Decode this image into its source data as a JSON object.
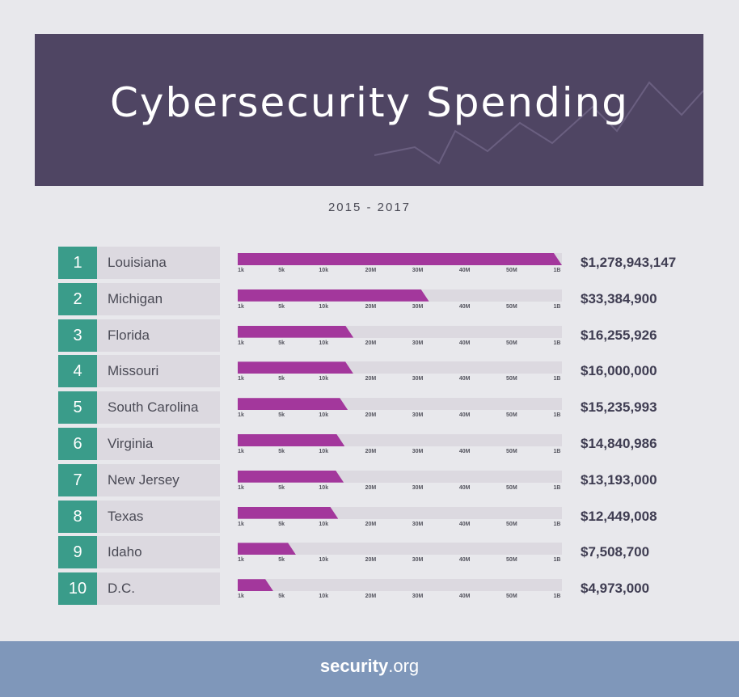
{
  "header": {
    "title": "Cybersecurity Spending",
    "subtitle": "2015 - 2017"
  },
  "colors": {
    "banner": "#4f4563",
    "rank": "#3a9c8a",
    "bar": "#a3379c",
    "track": "#dcd9e0",
    "footer": "#7f97ba"
  },
  "chart_data": {
    "type": "bar",
    "orientation": "horizontal",
    "tick_labels": [
      "1k",
      "5k",
      "10k",
      "20M",
      "30M",
      "40M",
      "50M",
      "1B"
    ],
    "categories": [
      "Louisiana",
      "Michigan",
      "Florida",
      "Missouri",
      "South Carolina",
      "Virginia",
      "New Jersey",
      "Texas",
      "Idaho",
      "D.C."
    ],
    "ranks": [
      "1",
      "2",
      "3",
      "4",
      "5",
      "6",
      "7",
      "8",
      "9",
      "10"
    ],
    "value_labels": [
      "$1,278,943,147",
      "$33,384,900",
      "$16,255,926",
      "$16,000,000",
      "$15,235,993",
      "$14,840,986",
      "$13,193,000",
      "$12,449,008",
      "$7,508,700",
      "$4,973,000"
    ],
    "values": [
      1278943147,
      33384900,
      16255926,
      16000000,
      15235993,
      14840986,
      13193000,
      12449008,
      7508700,
      4973000
    ],
    "fill_fraction": [
      1.0,
      0.59,
      0.357,
      0.357,
      0.34,
      0.33,
      0.327,
      0.31,
      0.18,
      0.11
    ]
  },
  "footer": {
    "logo_bold": "security",
    "logo_rest": ".org"
  }
}
